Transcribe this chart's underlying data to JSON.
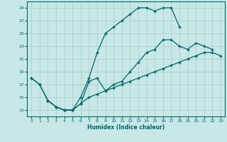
{
  "xlabel": "Humidex (Indice chaleur)",
  "bg_color": "#c8e8e8",
  "grid_color": "#b0d0d0",
  "line_color": "#006666",
  "xlim": [
    -0.5,
    23.5
  ],
  "ylim": [
    12,
    30
  ],
  "xticks": [
    0,
    1,
    2,
    3,
    4,
    5,
    6,
    7,
    8,
    9,
    10,
    11,
    12,
    13,
    14,
    15,
    16,
    17,
    18,
    19,
    20,
    21,
    22,
    23
  ],
  "yticks": [
    13,
    15,
    17,
    19,
    21,
    23,
    25,
    27,
    29
  ],
  "line_upper_x": [
    0,
    1,
    2,
    3,
    4,
    5,
    6,
    7,
    8,
    9,
    10,
    11,
    12,
    13,
    14,
    15,
    16,
    17,
    18
  ],
  "line_upper_y": [
    18,
    17,
    14.5,
    13.5,
    13,
    13,
    15,
    18,
    22,
    25,
    26,
    27,
    28,
    29,
    29,
    28.5,
    29,
    29,
    26
  ],
  "line_mid_x": [
    0,
    1,
    2,
    3,
    4,
    5,
    6,
    7,
    8,
    9,
    10,
    11,
    12,
    13,
    14,
    15,
    16,
    17,
    18,
    19,
    20,
    21,
    22
  ],
  "line_mid_y": [
    18,
    17,
    14.5,
    13.5,
    13,
    13,
    14,
    17.5,
    18,
    16,
    17,
    17.5,
    19,
    20.5,
    22,
    22.5,
    24,
    24,
    23,
    22.5,
    23.5,
    23,
    22.5
  ],
  "line_lower_x": [
    2,
    3,
    4,
    5,
    6,
    7,
    8,
    9,
    10,
    11,
    12,
    13,
    14,
    15,
    16,
    17,
    18,
    19,
    20,
    21,
    22,
    23
  ],
  "line_lower_y": [
    14.5,
    13.5,
    13,
    13,
    14,
    15,
    15.5,
    16,
    16.5,
    17,
    17.5,
    18,
    18.5,
    19,
    19.5,
    20,
    20.5,
    21,
    21.5,
    22,
    22,
    21.5
  ]
}
